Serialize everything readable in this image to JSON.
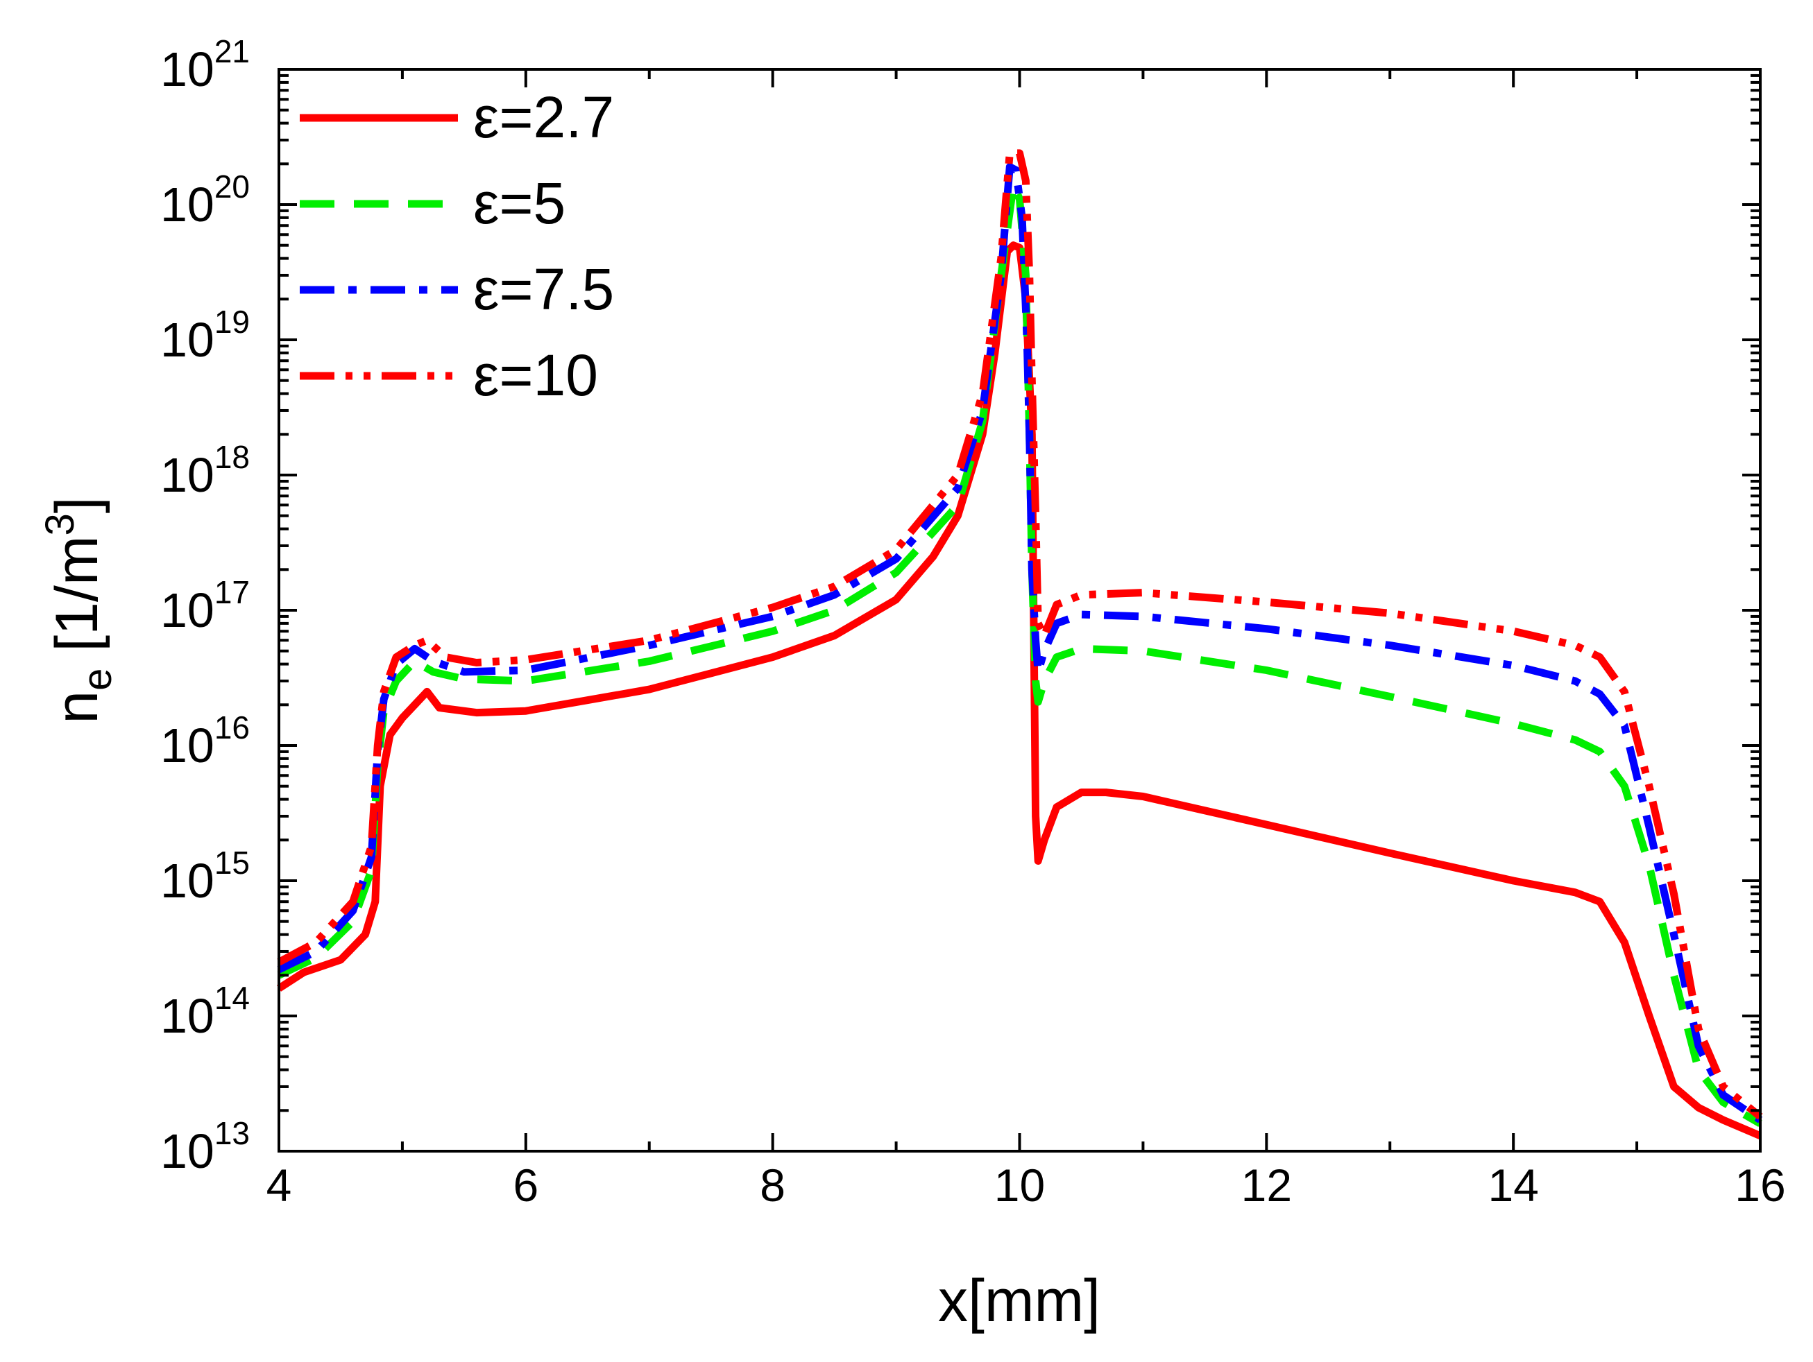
{
  "chart_data": {
    "type": "line",
    "title": "",
    "xlabel": "x[mm]",
    "ylabel": {
      "base": "n",
      "sub": "e",
      "unit_pre": " [1/m",
      "unit_sup": "3",
      "unit_post": "]"
    },
    "xlim": [
      4,
      16
    ],
    "ylim": [
      10000000000000.0,
      1e+21
    ],
    "yscale": "log",
    "x_ticks": [
      "4",
      "6",
      "8",
      "10",
      "12",
      "14",
      "16"
    ],
    "y_ticks": [
      {
        "base": "10",
        "exp": "13"
      },
      {
        "base": "10",
        "exp": "14"
      },
      {
        "base": "10",
        "exp": "15"
      },
      {
        "base": "10",
        "exp": "16"
      },
      {
        "base": "10",
        "exp": "17"
      },
      {
        "base": "10",
        "exp": "18"
      },
      {
        "base": "10",
        "exp": "19"
      },
      {
        "base": "10",
        "exp": "20"
      },
      {
        "base": "10",
        "exp": "21"
      }
    ],
    "legend_position": "top-left",
    "series": [
      {
        "name": "ε=2.7",
        "color": "#ff0000",
        "style": "solid",
        "x": [
          4.0,
          4.2,
          4.5,
          4.7,
          4.78,
          4.82,
          4.9,
          5.0,
          5.1,
          5.2,
          5.3,
          5.6,
          6.0,
          7.0,
          8.0,
          8.5,
          9.0,
          9.3,
          9.5,
          9.7,
          9.8,
          9.9,
          9.95,
          10.0,
          10.05,
          10.1,
          10.13,
          10.15,
          10.2,
          10.3,
          10.5,
          10.7,
          11.0,
          12.0,
          13.0,
          14.0,
          14.5,
          14.7,
          14.9,
          15.1,
          15.3,
          15.5,
          15.7,
          16.0
        ],
        "y": [
          160000000000000.0,
          210000000000000.0,
          260000000000000.0,
          400000000000000.0,
          700000000000000.0,
          5000000000000000.0,
          1.2e+16,
          1.6e+16,
          2e+16,
          2.5e+16,
          1.9e+16,
          1.75e+16,
          1.8e+16,
          2.6e+16,
          4.5e+16,
          6.5e+16,
          1.2e+17,
          2.5e+17,
          5e+17,
          2e+18,
          8e+18,
          4.5e+19,
          5e+19,
          4.8e+19,
          2e+19,
          2e+18,
          3000000000000000.0,
          1400000000000000.0,
          2000000000000000.0,
          3500000000000000.0,
          4500000000000000.0,
          4500000000000000.0,
          4200000000000000.0,
          2600000000000000.0,
          1600000000000000.0,
          1000000000000000.0,
          820000000000000.0,
          700000000000000.0,
          350000000000000.0,
          100000000000000.0,
          30000000000000.0,
          21000000000000.0,
          17000000000000.0,
          13000000000000.0
        ]
      },
      {
        "name": "ε=5",
        "color": "#00ee00",
        "style": "dash",
        "x": [
          4.0,
          4.3,
          4.6,
          4.75,
          4.8,
          4.85,
          4.95,
          5.1,
          5.25,
          5.5,
          6.0,
          7.0,
          8.0,
          8.5,
          9.0,
          9.5,
          9.7,
          9.85,
          9.95,
          10.0,
          10.05,
          10.08,
          10.1,
          10.13,
          10.15,
          10.2,
          10.3,
          10.5,
          11.0,
          12.0,
          13.0,
          14.0,
          14.5,
          14.7,
          14.9,
          15.1,
          15.3,
          15.5,
          15.7,
          16.0
        ],
        "y": [
          200000000000000.0,
          270000000000000.0,
          500000000000000.0,
          1200000000000000.0,
          7000000000000000.0,
          1.8e+16,
          3e+16,
          4.2e+16,
          3.5e+16,
          3.1e+16,
          3e+16,
          4.2e+16,
          7e+16,
          1e+17,
          1.9e+17,
          6e+17,
          2.5e+18,
          3e+19,
          1.4e+20,
          1.1e+20,
          3e+19,
          2e+18,
          2e+17,
          3e+16,
          2.1e+16,
          3e+16,
          4.5e+16,
          5.2e+16,
          5e+16,
          3.6e+16,
          2.3e+16,
          1.45e+16,
          1.1e+16,
          9000000000000000.0,
          5000000000000000.0,
          1300000000000000.0,
          200000000000000.0,
          40000000000000.0,
          23000000000000.0,
          16000000000000.0
        ]
      },
      {
        "name": "ε=7.5",
        "color": "#0000ff",
        "style": "dashdot",
        "x": [
          4.0,
          4.3,
          4.6,
          4.75,
          4.8,
          4.85,
          4.95,
          5.1,
          5.25,
          5.5,
          6.0,
          7.0,
          8.0,
          8.5,
          9.0,
          9.5,
          9.7,
          9.85,
          9.92,
          9.97,
          10.02,
          10.06,
          10.08,
          10.1,
          10.13,
          10.15,
          10.2,
          10.3,
          10.5,
          11.0,
          12.0,
          13.0,
          14.0,
          14.5,
          14.7,
          14.9,
          15.1,
          15.3,
          15.5,
          15.7,
          16.0
        ],
        "y": [
          220000000000000.0,
          300000000000000.0,
          600000000000000.0,
          1500000000000000.0,
          9000000000000000.0,
          2.2e+16,
          4e+16,
          5.2e+16,
          4.2e+16,
          3.5e+16,
          3.6e+16,
          5.5e+16,
          9e+16,
          1.3e+17,
          2.4e+17,
          8e+17,
          3e+18,
          3e+19,
          1.9e+20,
          1.8e+20,
          8e+19,
          1e+19,
          2e+18,
          2e+17,
          6e+16,
          3.5e+16,
          5e+16,
          8e+16,
          9.3e+16,
          9e+16,
          7.3e+16,
          5.5e+16,
          3.9e+16,
          3e+16,
          2.4e+16,
          1.4e+16,
          2500000000000000.0,
          400000000000000.0,
          60000000000000.0,
          26000000000000.0,
          17000000000000.0
        ]
      },
      {
        "name": "ε=10",
        "color": "#ff0000",
        "style": "dashdotdot",
        "x": [
          4.0,
          4.3,
          4.6,
          4.75,
          4.8,
          4.85,
          4.95,
          5.1,
          5.2,
          5.35,
          5.6,
          6.0,
          7.0,
          8.0,
          8.5,
          9.0,
          9.5,
          9.7,
          9.85,
          9.92,
          10.0,
          10.05,
          10.08,
          10.1,
          10.13,
          10.15,
          10.2,
          10.3,
          10.5,
          11.0,
          12.0,
          13.0,
          14.0,
          14.5,
          14.7,
          14.9,
          15.1,
          15.3,
          15.5,
          15.7,
          16.0
        ],
        "y": [
          250000000000000.0,
          350000000000000.0,
          700000000000000.0,
          1800000000000000.0,
          1e+16,
          2.5e+16,
          4.5e+16,
          5.5e+16,
          6e+16,
          4.5e+16,
          4.1e+16,
          4.3e+16,
          6e+16,
          1.05e+17,
          1.5e+17,
          2.8e+17,
          1e+18,
          4e+18,
          4e+19,
          2.4e+20,
          2.4e+20,
          1.5e+20,
          3e+19,
          5e+18,
          5e+17,
          8e+16,
          6.5e+16,
          1.1e+17,
          1.3e+17,
          1.35e+17,
          1.15e+17,
          9.5e+16,
          7e+16,
          5.5e+16,
          4.5e+16,
          2.5e+16,
          5000000000000000.0,
          800000000000000.0,
          80000000000000.0,
          30000000000000.0,
          18000000000000.0
        ]
      }
    ]
  }
}
